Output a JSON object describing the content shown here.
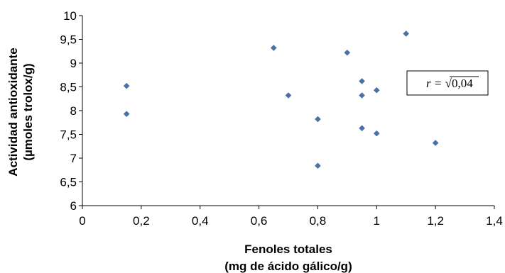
{
  "chart_data": {
    "type": "scatter",
    "title": "",
    "xlabel_line1": "Fenoles totales",
    "xlabel_line2": "(mg de ácido gálico/g)",
    "ylabel_line1": "Actividad antioxidante",
    "ylabel_line2": "(µmoles trolox/g)",
    "xlim": [
      0,
      1.4
    ],
    "ylim": [
      6,
      10
    ],
    "x_ticks": [
      "0",
      "0,2",
      "0,4",
      "0,6",
      "0,8",
      "1",
      "1,2",
      "1,4"
    ],
    "y_ticks": [
      "6",
      "6,5",
      "7",
      "7,5",
      "8",
      "8,5",
      "9",
      "9,5",
      "10"
    ],
    "grid": false,
    "marker_color": "#4a72a8",
    "series": [
      {
        "points": [
          {
            "x": 0.15,
            "y": 8.52
          },
          {
            "x": 0.15,
            "y": 7.93
          },
          {
            "x": 0.65,
            "y": 9.32
          },
          {
            "x": 0.7,
            "y": 8.32
          },
          {
            "x": 0.8,
            "y": 7.82
          },
          {
            "x": 0.8,
            "y": 6.84
          },
          {
            "x": 0.9,
            "y": 9.22
          },
          {
            "x": 0.95,
            "y": 8.62
          },
          {
            "x": 0.95,
            "y": 8.32
          },
          {
            "x": 0.95,
            "y": 7.63
          },
          {
            "x": 1.0,
            "y": 8.43
          },
          {
            "x": 1.0,
            "y": 7.52
          },
          {
            "x": 1.1,
            "y": 9.62
          },
          {
            "x": 1.2,
            "y": 7.32
          }
        ]
      }
    ],
    "annotation": {
      "prefix": "r = ",
      "radical": "√",
      "value": "0,04"
    }
  }
}
